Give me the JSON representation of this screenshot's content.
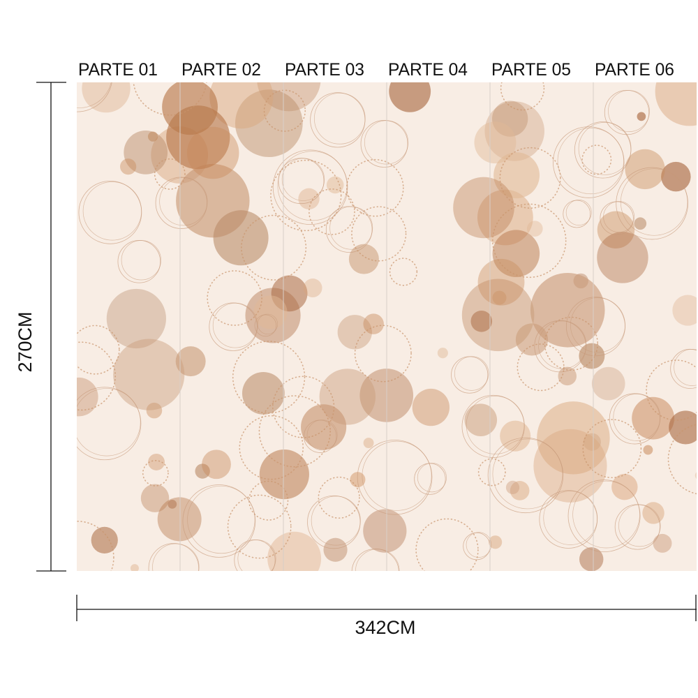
{
  "panels": [
    "PARTE 01",
    "PARTE 02",
    "PARTE 03",
    "PARTE 04",
    "PARTE 05",
    "PARTE 06"
  ],
  "height_label": "270CM",
  "width_label": "342CM"
}
